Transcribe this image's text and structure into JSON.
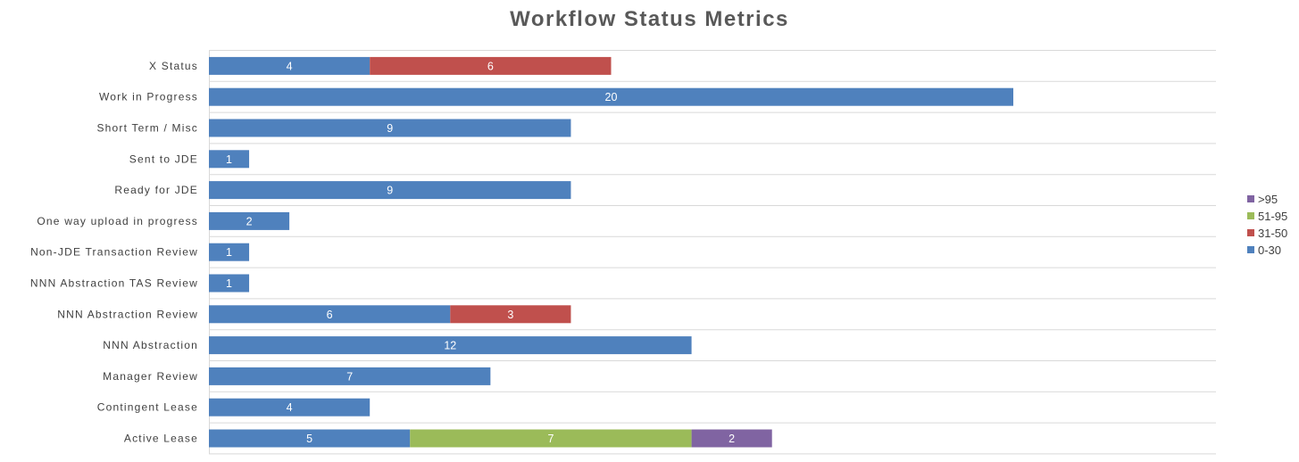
{
  "chart_data": {
    "type": "bar",
    "orientation": "horizontal",
    "stacked": true,
    "title": "Workflow Status Metrics",
    "categories": [
      "X Status",
      "Work in Progress",
      "Short Term / Misc",
      "Sent to JDE",
      "Ready for JDE",
      "One way upload in progress",
      "Non-JDE Transaction Review",
      "NNN Abstraction TAS Review",
      "NNN Abstraction Review",
      "NNN Abstraction",
      "Manager Review",
      "Contingent Lease",
      "Active Lease"
    ],
    "series": [
      {
        "name": "0-30",
        "color": "#4f81bd",
        "values": [
          4,
          20,
          9,
          1,
          9,
          2,
          1,
          1,
          6,
          12,
          7,
          4,
          5
        ]
      },
      {
        "name": "31-50",
        "color": "#c0504d",
        "values": [
          6,
          0,
          0,
          0,
          0,
          0,
          0,
          0,
          3,
          0,
          0,
          0,
          0
        ]
      },
      {
        "name": "51-95",
        "color": "#9bbb59",
        "values": [
          0,
          0,
          0,
          0,
          0,
          0,
          0,
          0,
          0,
          0,
          0,
          0,
          7
        ]
      },
      {
        "name": ">95",
        "color": "#8064a2",
        "values": [
          0,
          0,
          0,
          0,
          0,
          0,
          0,
          0,
          0,
          0,
          0,
          0,
          2
        ]
      }
    ],
    "xlim": [
      0,
      25
    ],
    "grid": true,
    "legend_position": "right",
    "legend_order": [
      ">95",
      "51-95",
      "31-50",
      "0-30"
    ]
  }
}
